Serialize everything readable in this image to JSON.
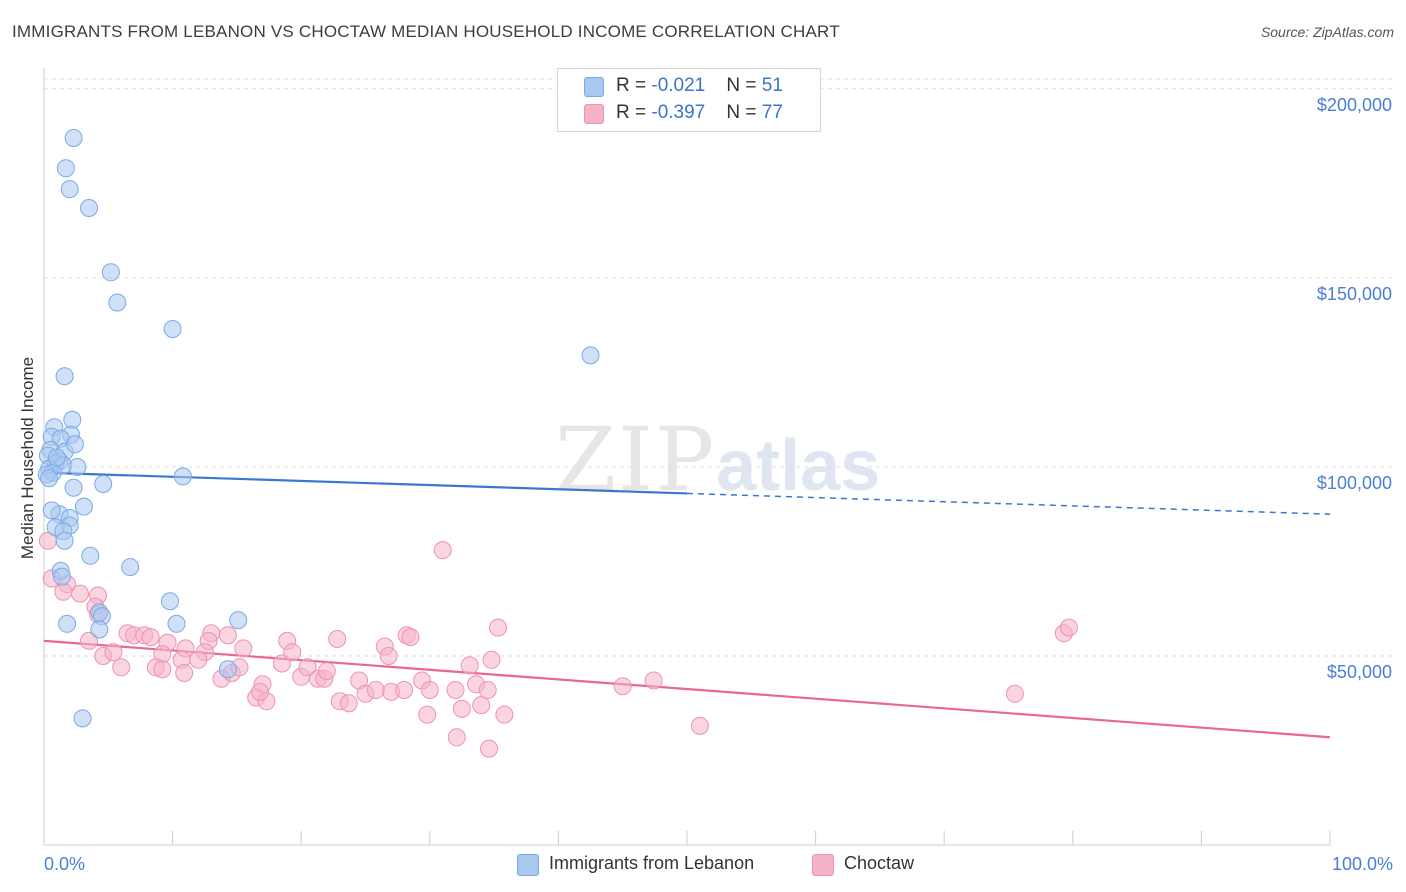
{
  "title": "IMMIGRANTS FROM LEBANON VS CHOCTAW MEDIAN HOUSEHOLD INCOME CORRELATION CHART",
  "source": "Source: ZipAtlas.com",
  "watermark": {
    "zip": "ZIP",
    "atlas": "atlas"
  },
  "colors": {
    "blue_fill": "#a9c8f0",
    "blue_stroke": "#7aaae6",
    "blue_line": "#3a78cf",
    "pink_fill": "#f5b3c8",
    "pink_stroke": "#ee93b1",
    "pink_line": "#e8679a",
    "tick_text": "#4a7fd4",
    "grid": "#dddddd"
  },
  "legend_top": {
    "rows": [
      {
        "r_label": "R = ",
        "r_value": "-0.021",
        "n_label": "N = ",
        "n_value": "51"
      },
      {
        "r_label": "R = ",
        "r_value": "-0.397",
        "n_label": "N = ",
        "n_value": "77"
      }
    ]
  },
  "chart_data": {
    "type": "scatter",
    "title": "IMMIGRANTS FROM LEBANON VS CHOCTAW MEDIAN HOUSEHOLD INCOME CORRELATION CHART",
    "xlabel": "",
    "ylabel": "Median Household Income",
    "xlim": [
      0,
      100
    ],
    "ylim": [
      0,
      205000
    ],
    "x_tick_labels": [
      "0.0%",
      "100.0%"
    ],
    "y_ticks": [
      50000,
      100000,
      150000,
      200000
    ],
    "y_tick_labels": [
      "$50,000",
      "$100,000",
      "$150,000",
      "$200,000"
    ],
    "grid": true,
    "series": [
      {
        "name": "Immigrants from Lebanon",
        "color": "blue",
        "trend": {
          "x": [
            0,
            50
          ],
          "y": [
            98500,
            93000
          ],
          "dashed_to": {
            "x": 100,
            "y": 87500
          }
        },
        "points": [
          [
            2.3,
            187000
          ],
          [
            1.7,
            179000
          ],
          [
            2.0,
            173500
          ],
          [
            3.5,
            168500
          ],
          [
            5.2,
            151500
          ],
          [
            5.7,
            143500
          ],
          [
            10.0,
            136500
          ],
          [
            42.5,
            129500
          ],
          [
            1.6,
            124000
          ],
          [
            2.2,
            112500
          ],
          [
            0.8,
            110500
          ],
          [
            2.1,
            108500
          ],
          [
            0.6,
            108000
          ],
          [
            1.3,
            107500
          ],
          [
            0.5,
            104500
          ],
          [
            1.6,
            104000
          ],
          [
            0.3,
            103000
          ],
          [
            1.2,
            101500
          ],
          [
            0.9,
            101000
          ],
          [
            1.5,
            100500
          ],
          [
            2.6,
            100000
          ],
          [
            0.4,
            99500
          ],
          [
            0.7,
            98500
          ],
          [
            0.2,
            98000
          ],
          [
            10.8,
            97500
          ],
          [
            4.6,
            95500
          ],
          [
            2.3,
            94500
          ],
          [
            3.1,
            89500
          ],
          [
            1.2,
            87500
          ],
          [
            2.0,
            86500
          ],
          [
            2.0,
            84500
          ],
          [
            0.9,
            84000
          ],
          [
            1.5,
            83000
          ],
          [
            1.6,
            80500
          ],
          [
            3.6,
            76500
          ],
          [
            6.7,
            73500
          ],
          [
            1.3,
            72500
          ],
          [
            1.4,
            71000
          ],
          [
            9.8,
            64500
          ],
          [
            15.1,
            59500
          ],
          [
            4.3,
            61500
          ],
          [
            4.5,
            60500
          ],
          [
            1.8,
            58500
          ],
          [
            10.3,
            58500
          ],
          [
            4.3,
            57000
          ],
          [
            14.3,
            46500
          ],
          [
            3.0,
            33500
          ],
          [
            0.4,
            97000
          ],
          [
            1.0,
            102500
          ],
          [
            2.4,
            106000
          ],
          [
            0.6,
            88500
          ]
        ]
      },
      {
        "name": "Choctaw",
        "color": "pink",
        "trend": {
          "x": [
            0,
            100
          ],
          "y": [
            54000,
            28500
          ]
        },
        "points": [
          [
            0.3,
            80500
          ],
          [
            0.6,
            70500
          ],
          [
            1.8,
            69000
          ],
          [
            1.5,
            67000
          ],
          [
            2.8,
            66500
          ],
          [
            4.2,
            66000
          ],
          [
            4.0,
            63000
          ],
          [
            4.2,
            61000
          ],
          [
            3.5,
            54000
          ],
          [
            6.5,
            56000
          ],
          [
            7.0,
            55500
          ],
          [
            7.8,
            55500
          ],
          [
            8.3,
            55000
          ],
          [
            9.6,
            53500
          ],
          [
            13.0,
            56000
          ],
          [
            12.8,
            54000
          ],
          [
            14.3,
            55500
          ],
          [
            11.0,
            52000
          ],
          [
            12.5,
            51000
          ],
          [
            9.2,
            50500
          ],
          [
            10.7,
            49000
          ],
          [
            4.6,
            50000
          ],
          [
            5.4,
            51000
          ],
          [
            8.7,
            47000
          ],
          [
            9.2,
            46500
          ],
          [
            10.9,
            45500
          ],
          [
            13.8,
            44000
          ],
          [
            14.6,
            45500
          ],
          [
            15.2,
            47000
          ],
          [
            15.5,
            52000
          ],
          [
            18.5,
            48000
          ],
          [
            18.9,
            54000
          ],
          [
            19.3,
            51000
          ],
          [
            20.0,
            44500
          ],
          [
            20.5,
            47000
          ],
          [
            21.3,
            44000
          ],
          [
            21.8,
            44000
          ],
          [
            17.0,
            42500
          ],
          [
            16.5,
            39000
          ],
          [
            17.3,
            38000
          ],
          [
            16.8,
            40500
          ],
          [
            22.8,
            54500
          ],
          [
            23.0,
            38000
          ],
          [
            23.7,
            37500
          ],
          [
            24.5,
            43500
          ],
          [
            25.0,
            40000
          ],
          [
            25.8,
            41000
          ],
          [
            26.5,
            52500
          ],
          [
            26.8,
            50000
          ],
          [
            27.0,
            40500
          ],
          [
            28.0,
            41000
          ],
          [
            28.2,
            55500
          ],
          [
            29.4,
            43500
          ],
          [
            30.0,
            41000
          ],
          [
            29.8,
            34500
          ],
          [
            32.0,
            41000
          ],
          [
            32.5,
            36000
          ],
          [
            33.1,
            47500
          ],
          [
            33.6,
            42500
          ],
          [
            34.0,
            37000
          ],
          [
            34.5,
            41000
          ],
          [
            34.8,
            49000
          ],
          [
            35.3,
            57500
          ],
          [
            35.8,
            34500
          ],
          [
            31.0,
            78000
          ],
          [
            32.1,
            28500
          ],
          [
            34.6,
            25500
          ],
          [
            45.0,
            42000
          ],
          [
            47.4,
            43500
          ],
          [
            51.0,
            31500
          ],
          [
            75.5,
            40000
          ],
          [
            79.3,
            56000
          ],
          [
            79.7,
            57500
          ],
          [
            28.5,
            55000
          ],
          [
            12.0,
            49000
          ],
          [
            22.0,
            46000
          ],
          [
            6.0,
            47000
          ]
        ]
      }
    ]
  },
  "legend_bottom": [
    {
      "label": "Immigrants from Lebanon"
    },
    {
      "label": "Choctaw"
    }
  ]
}
